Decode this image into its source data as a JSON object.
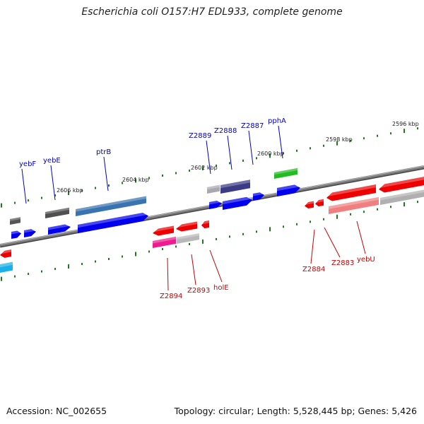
{
  "title": "Escherichia coli O157:H7 EDL933, complete genome",
  "footer": {
    "accession": "Accession: NC_002655",
    "stats": "Topology: circular; Length: 5,528,445 bp; Genes: 5,426"
  },
  "colors": {
    "backbone": "#7a7a7a",
    "tick": "#1f7a1f",
    "label_forward": "#0000cc",
    "label_reverse": "#cc0000",
    "kbp_label": "#222222"
  },
  "kbp_labels": [
    "2606 kbp",
    "2604 kbp",
    "2602 kbp",
    "2600 kbp",
    "2598 kbp",
    "2596 kbp"
  ],
  "genes_forward": [
    {
      "name": "yebF",
      "color": "#0000ee",
      "labeled": true
    },
    {
      "name": "yebE",
      "color": "#0000ee",
      "labeled": true
    },
    {
      "name": "ptrB",
      "color": "#0000ee",
      "labeled": true
    },
    {
      "name": "Z2889",
      "color": "#0000ee",
      "labeled": true
    },
    {
      "name": "Z2888",
      "color": "#0000ee",
      "labeled": true
    },
    {
      "name": "Z2887",
      "color": "#0000ee",
      "labeled": true
    },
    {
      "name": "pphA",
      "color": "#0000ee",
      "labeled": true
    }
  ],
  "genes_reverse": [
    {
      "name": "Z2894",
      "color": "#ee0000",
      "labeled": true
    },
    {
      "name": "Z2893",
      "color": "#ee0000",
      "labeled": true
    },
    {
      "name": "holE",
      "color": "#ee0000",
      "labeled": true
    },
    {
      "name": "Z2884",
      "color": "#ee0000",
      "labeled": true
    },
    {
      "name": "Z2883",
      "color": "#ee0000",
      "labeled": true
    },
    {
      "name": "yebU",
      "color": "#ee0000",
      "labeled": true
    }
  ]
}
